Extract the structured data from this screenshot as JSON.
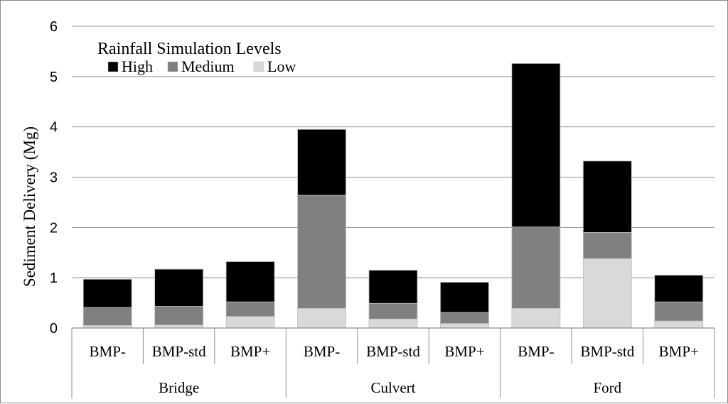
{
  "chart_data": {
    "type": "bar",
    "stacked": true,
    "title": "",
    "xlabel": "",
    "ylabel": "Sediment Delivery (Mg)",
    "ylim": [
      0,
      6
    ],
    "yticks": [
      "0",
      "1",
      "2",
      "3",
      "4",
      "5",
      "6"
    ],
    "grid": true,
    "legend_title": "Rainfall Simulation Levels",
    "legend_position": "top-left",
    "groups": [
      "Bridge",
      "Culvert",
      "Ford"
    ],
    "categories": [
      "BMP-",
      "BMP-std",
      "BMP+",
      "BMP-",
      "BMP-std",
      "BMP+",
      "BMP-",
      "BMP-std",
      "BMP+"
    ],
    "series": [
      {
        "name": "Low",
        "color": "#d9d9d9",
        "values": [
          0.05,
          0.06,
          0.23,
          0.39,
          0.18,
          0.09,
          0.39,
          1.38,
          0.14
        ]
      },
      {
        "name": "Medium",
        "color": "#808080",
        "values": [
          0.36,
          0.37,
          0.29,
          2.25,
          0.31,
          0.22,
          1.62,
          0.52,
          0.38
        ]
      },
      {
        "name": "High",
        "color": "#000000",
        "values": [
          0.56,
          0.74,
          0.8,
          1.31,
          0.66,
          0.6,
          3.25,
          1.42,
          0.53
        ]
      }
    ],
    "legend_order": [
      "High",
      "Medium",
      "Low"
    ]
  }
}
